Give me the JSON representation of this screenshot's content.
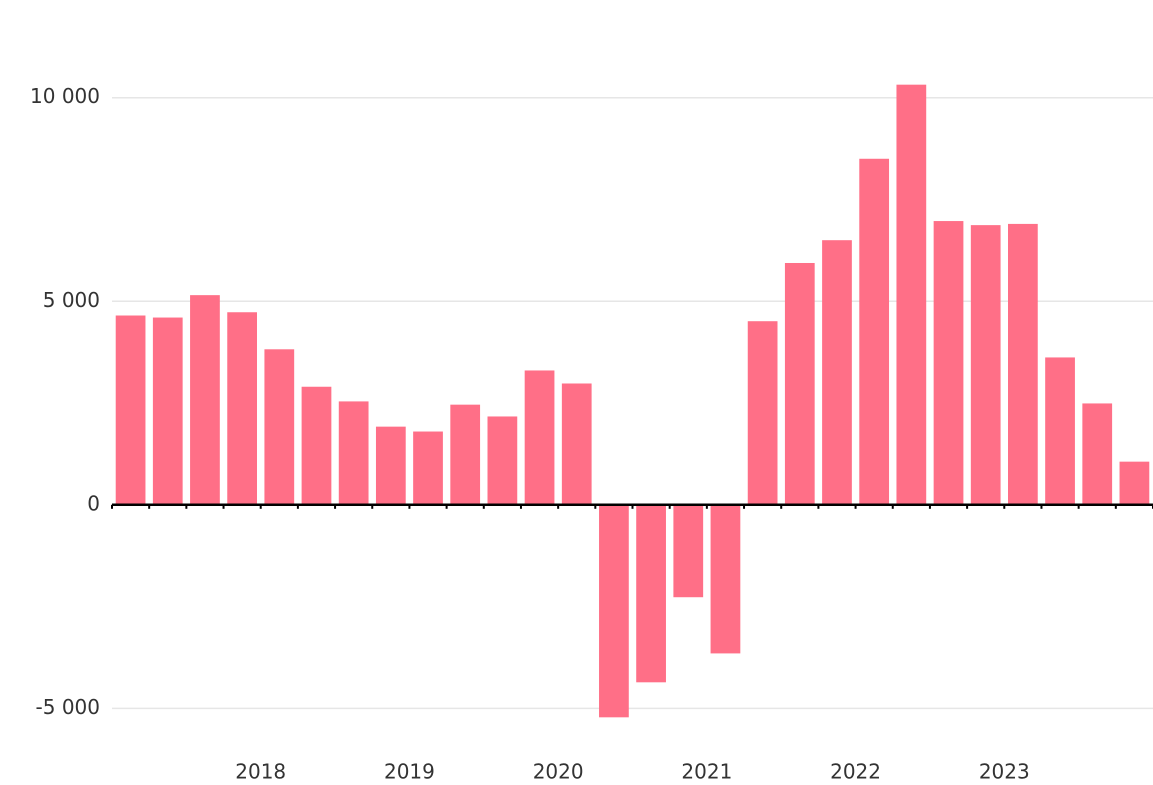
{
  "chart_data": {
    "type": "bar",
    "categories": [
      null,
      null,
      null,
      "2018",
      null,
      null,
      null,
      "2019",
      null,
      null,
      null,
      "2020",
      null,
      null,
      null,
      "2021",
      null,
      null,
      null,
      "2022",
      null,
      null,
      null,
      "2023",
      null,
      null,
      null,
      null
    ],
    "values": [
      4650,
      4600,
      5150,
      4730,
      3820,
      2900,
      2540,
      1920,
      1800,
      2460,
      2170,
      3300,
      2980,
      -5220,
      -4360,
      -2270,
      -3650,
      4510,
      5940,
      6500,
      8500,
      10320,
      6970,
      6870,
      6900,
      3620,
      2490,
      1060
    ],
    "color": "#ff6f87",
    "ylim": [
      -5900,
      12400
    ],
    "yticks": [
      {
        "value": -5000,
        "label": "-5 000"
      },
      0,
      {
        "value": 5000,
        "label": "5 000"
      },
      {
        "value": 10000,
        "label": "10 000"
      }
    ],
    "grid": true
  }
}
